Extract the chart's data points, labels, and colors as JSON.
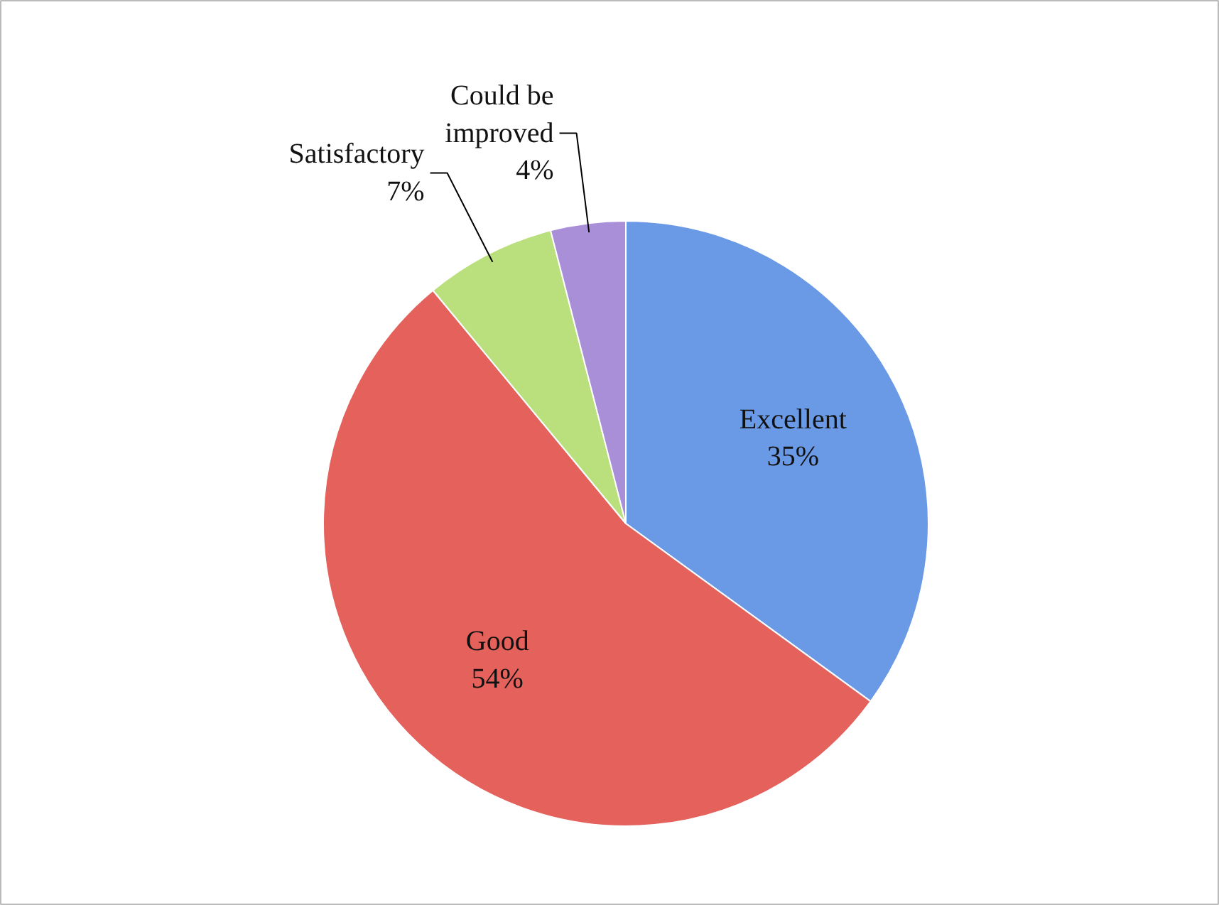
{
  "chart_data": {
    "type": "pie",
    "categories": [
      "Excellent",
      "Good",
      "Satisfactory",
      "Could be improved"
    ],
    "values": [
      35,
      54,
      7,
      4
    ],
    "value_labels": [
      "35%",
      "54%",
      "7%",
      "4%"
    ],
    "colors": [
      "#6a9ae6",
      "#e4615c",
      "#b9e07c",
      "#a98fd8"
    ],
    "legend": false
  }
}
